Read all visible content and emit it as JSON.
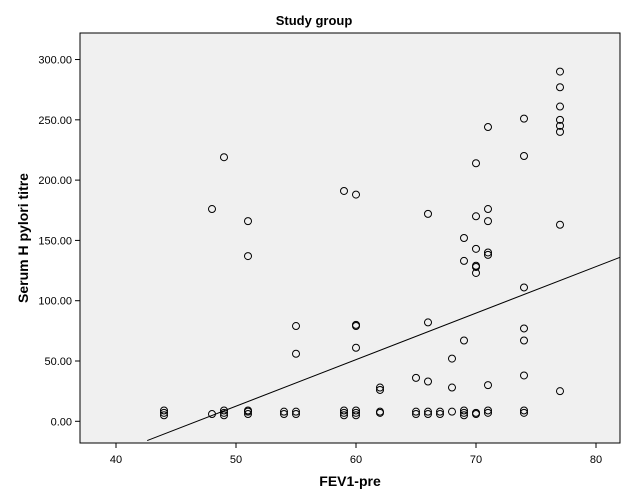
{
  "chart_data": {
    "type": "scatter",
    "title": "Study group",
    "xlabel": "FEV1-pre",
    "ylabel": "Serum H pylori titre",
    "xlim": [
      37,
      82
    ],
    "ylim": [
      -18,
      322
    ],
    "x_ticks": [
      40,
      50,
      60,
      70,
      80
    ],
    "x_tick_labels": [
      "40",
      "50",
      "60",
      "70",
      "80"
    ],
    "y_ticks": [
      0,
      50,
      100,
      150,
      200,
      250,
      300
    ],
    "y_tick_labels": [
      "0.00",
      "50.00",
      "100.00",
      "150.00",
      "200.00",
      "250.00",
      "300.00"
    ],
    "grid": false,
    "background_color": "#f0f0f0",
    "marker_color": "#000000",
    "fit_line": {
      "x": [
        42.6,
        82
      ],
      "y": [
        -16,
        136
      ]
    },
    "points": [
      {
        "x": 44,
        "y": 9
      },
      {
        "x": 44,
        "y": 7
      },
      {
        "x": 44,
        "y": 5
      },
      {
        "x": 48,
        "y": 176
      },
      {
        "x": 48,
        "y": 6
      },
      {
        "x": 49,
        "y": 219
      },
      {
        "x": 49,
        "y": 9
      },
      {
        "x": 49,
        "y": 7
      },
      {
        "x": 49,
        "y": 5
      },
      {
        "x": 51,
        "y": 166
      },
      {
        "x": 51,
        "y": 137
      },
      {
        "x": 51,
        "y": 9
      },
      {
        "x": 51,
        "y": 8
      },
      {
        "x": 51,
        "y": 6
      },
      {
        "x": 54,
        "y": 8
      },
      {
        "x": 54,
        "y": 6
      },
      {
        "x": 55,
        "y": 79
      },
      {
        "x": 55,
        "y": 56
      },
      {
        "x": 55,
        "y": 8
      },
      {
        "x": 55,
        "y": 6
      },
      {
        "x": 59,
        "y": 191
      },
      {
        "x": 59,
        "y": 9
      },
      {
        "x": 59,
        "y": 7
      },
      {
        "x": 59,
        "y": 5
      },
      {
        "x": 60,
        "y": 188
      },
      {
        "x": 60,
        "y": 80
      },
      {
        "x": 60,
        "y": 79
      },
      {
        "x": 60,
        "y": 61
      },
      {
        "x": 60,
        "y": 9
      },
      {
        "x": 60,
        "y": 7
      },
      {
        "x": 60,
        "y": 5
      },
      {
        "x": 62,
        "y": 28
      },
      {
        "x": 62,
        "y": 26
      },
      {
        "x": 62,
        "y": 8
      },
      {
        "x": 62,
        "y": 7
      },
      {
        "x": 65,
        "y": 36
      },
      {
        "x": 65,
        "y": 8
      },
      {
        "x": 65,
        "y": 6
      },
      {
        "x": 66,
        "y": 172
      },
      {
        "x": 66,
        "y": 82
      },
      {
        "x": 66,
        "y": 33
      },
      {
        "x": 66,
        "y": 8
      },
      {
        "x": 66,
        "y": 6
      },
      {
        "x": 67,
        "y": 8
      },
      {
        "x": 67,
        "y": 6
      },
      {
        "x": 68,
        "y": 52
      },
      {
        "x": 68,
        "y": 28
      },
      {
        "x": 68,
        "y": 8
      },
      {
        "x": 69,
        "y": 152
      },
      {
        "x": 69,
        "y": 133
      },
      {
        "x": 69,
        "y": 67
      },
      {
        "x": 69,
        "y": 9
      },
      {
        "x": 69,
        "y": 7
      },
      {
        "x": 69,
        "y": 5
      },
      {
        "x": 70,
        "y": 214
      },
      {
        "x": 70,
        "y": 170
      },
      {
        "x": 70,
        "y": 143
      },
      {
        "x": 70,
        "y": 129
      },
      {
        "x": 70,
        "y": 128
      },
      {
        "x": 70,
        "y": 123
      },
      {
        "x": 70,
        "y": 7
      },
      {
        "x": 70,
        "y": 6
      },
      {
        "x": 71,
        "y": 244
      },
      {
        "x": 71,
        "y": 176
      },
      {
        "x": 71,
        "y": 166
      },
      {
        "x": 71,
        "y": 140
      },
      {
        "x": 71,
        "y": 138
      },
      {
        "x": 71,
        "y": 30
      },
      {
        "x": 71,
        "y": 9
      },
      {
        "x": 71,
        "y": 7
      },
      {
        "x": 74,
        "y": 251
      },
      {
        "x": 74,
        "y": 220
      },
      {
        "x": 74,
        "y": 111
      },
      {
        "x": 74,
        "y": 77
      },
      {
        "x": 74,
        "y": 67
      },
      {
        "x": 74,
        "y": 38
      },
      {
        "x": 74,
        "y": 9
      },
      {
        "x": 74,
        "y": 7
      },
      {
        "x": 77,
        "y": 290
      },
      {
        "x": 77,
        "y": 277
      },
      {
        "x": 77,
        "y": 261
      },
      {
        "x": 77,
        "y": 250
      },
      {
        "x": 77,
        "y": 245
      },
      {
        "x": 77,
        "y": 240
      },
      {
        "x": 77,
        "y": 163
      },
      {
        "x": 77,
        "y": 25
      }
    ]
  }
}
